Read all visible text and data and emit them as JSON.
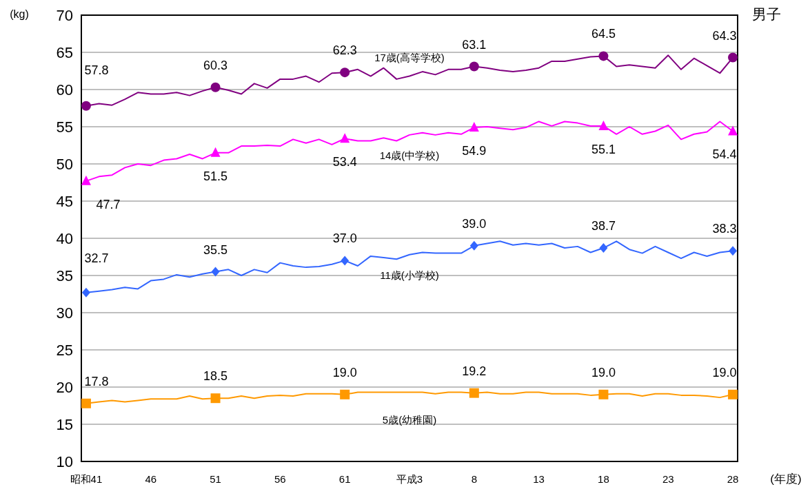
{
  "chart_data": {
    "type": "line",
    "title": "男子",
    "ylabel": "(kg)",
    "xlabel": "(年度)",
    "categories": [
      "昭和41",
      null,
      null,
      null,
      null,
      "46",
      null,
      null,
      null,
      null,
      "51",
      null,
      null,
      null,
      null,
      "56",
      null,
      null,
      null,
      null,
      "61",
      null,
      null,
      null,
      null,
      "平成3",
      null,
      null,
      null,
      null,
      "8",
      null,
      null,
      null,
      null,
      "13",
      null,
      null,
      null,
      null,
      "18",
      null,
      null,
      null,
      null,
      "23",
      null,
      null,
      null,
      null,
      "28"
    ],
    "ylim": [
      10,
      70
    ],
    "yticks": [
      10,
      15,
      20,
      25,
      30,
      35,
      40,
      45,
      50,
      55,
      60,
      65,
      70
    ],
    "grid": "y",
    "series": [
      {
        "name": "17歳(高等学校)",
        "color": "#800080",
        "values": [
          57.8,
          58.1,
          57.9,
          58.7,
          59.6,
          59.4,
          59.4,
          59.6,
          59.2,
          59.8,
          60.3,
          59.9,
          59.4,
          60.8,
          60.2,
          61.4,
          61.4,
          61.8,
          61.0,
          62.2,
          62.3,
          62.7,
          61.8,
          62.9,
          61.4,
          61.8,
          62.4,
          62.0,
          62.7,
          62.7,
          63.1,
          62.9,
          62.6,
          62.4,
          62.6,
          62.9,
          63.8,
          63.8,
          64.1,
          64.4,
          64.5,
          63.1,
          63.3,
          63.1,
          62.9,
          64.6,
          62.7,
          64.2,
          63.2,
          62.2,
          64.3
        ]
      },
      {
        "name": "14歳(中学校)",
        "color": "#ff00ff",
        "values": [
          47.7,
          48.3,
          48.5,
          49.5,
          50.0,
          49.8,
          50.5,
          50.7,
          51.3,
          50.7,
          51.5,
          51.5,
          52.4,
          52.4,
          52.5,
          52.4,
          53.3,
          52.8,
          53.3,
          52.6,
          53.4,
          53.1,
          53.1,
          53.5,
          53.1,
          53.9,
          54.2,
          53.9,
          54.2,
          54.0,
          54.9,
          55.0,
          54.8,
          54.6,
          54.9,
          55.7,
          55.1,
          55.7,
          55.5,
          55.1,
          55.1,
          54.0,
          55.0,
          54.0,
          54.4,
          55.2,
          53.3,
          54.0,
          54.3,
          55.7,
          54.4
        ]
      },
      {
        "name": "11歳(小学校)",
        "color": "#3366ff",
        "values": [
          32.7,
          32.9,
          33.1,
          33.4,
          33.2,
          34.3,
          34.5,
          35.1,
          34.8,
          35.2,
          35.5,
          35.8,
          35.0,
          35.8,
          35.4,
          36.7,
          36.3,
          36.1,
          36.2,
          36.5,
          37.0,
          36.3,
          37.6,
          37.4,
          37.2,
          37.8,
          38.1,
          38.0,
          38.0,
          38.0,
          39.0,
          39.3,
          39.6,
          39.1,
          39.3,
          39.1,
          39.3,
          38.7,
          38.9,
          38.1,
          38.7,
          39.6,
          38.5,
          38.0,
          38.9,
          38.1,
          37.3,
          38.1,
          37.6,
          38.1,
          38.3
        ]
      },
      {
        "name": "5歳(幼稚園)",
        "color": "#ff9900",
        "values": [
          17.8,
          18.0,
          18.2,
          18.0,
          18.2,
          18.4,
          18.4,
          18.4,
          18.8,
          18.4,
          18.5,
          18.5,
          18.8,
          18.5,
          18.8,
          18.9,
          18.8,
          19.1,
          19.1,
          19.1,
          19.0,
          19.3,
          19.3,
          19.3,
          19.3,
          19.3,
          19.3,
          19.1,
          19.3,
          19.3,
          19.2,
          19.3,
          19.1,
          19.1,
          19.3,
          19.3,
          19.1,
          19.1,
          19.1,
          18.9,
          19.0,
          19.1,
          19.1,
          18.8,
          19.1,
          19.1,
          18.9,
          18.9,
          18.8,
          18.6,
          19.0
        ]
      },
      {
        "type": "scatter",
        "color": "#800080",
        "marker": "circle",
        "x": [
          "昭和41",
          "51",
          "61",
          "8",
          "18",
          "28"
        ],
        "values": [
          57.8,
          60.3,
          62.3,
          63.1,
          64.5,
          64.3
        ],
        "value_labels": [
          "57.8",
          "60.3",
          "62.3",
          "63.1",
          "64.5",
          "64.3"
        ]
      },
      {
        "type": "scatter",
        "color": "#ff00ff",
        "marker": "triangle",
        "x": [
          "昭和41",
          "51",
          "61",
          "8",
          "18",
          "28"
        ],
        "values": [
          47.7,
          51.5,
          53.4,
          54.9,
          55.1,
          54.4
        ],
        "value_labels": [
          "47.7",
          "51.5",
          "53.4",
          "54.9",
          "55.1",
          "54.4"
        ]
      },
      {
        "type": "scatter",
        "color": "#3366ff",
        "marker": "diamond",
        "x": [
          "昭和41",
          "51",
          "61",
          "8",
          "18",
          "28"
        ],
        "values": [
          32.7,
          35.5,
          37.0,
          39.0,
          38.7,
          38.3
        ],
        "value_labels": [
          "32.7",
          "35.5",
          "37.0",
          "39.0",
          "38.7",
          "38.3"
        ]
      },
      {
        "type": "scatter",
        "color": "#ff9900",
        "marker": "square",
        "x": [
          "昭和41",
          "51",
          "61",
          "8",
          "18",
          "28"
        ],
        "values": [
          17.8,
          18.5,
          19.0,
          19.2,
          19.0,
          19.0
        ],
        "value_labels": [
          "17.8",
          "18.5",
          "19.0",
          "19.2",
          "19.0",
          "19.0"
        ]
      }
    ]
  }
}
